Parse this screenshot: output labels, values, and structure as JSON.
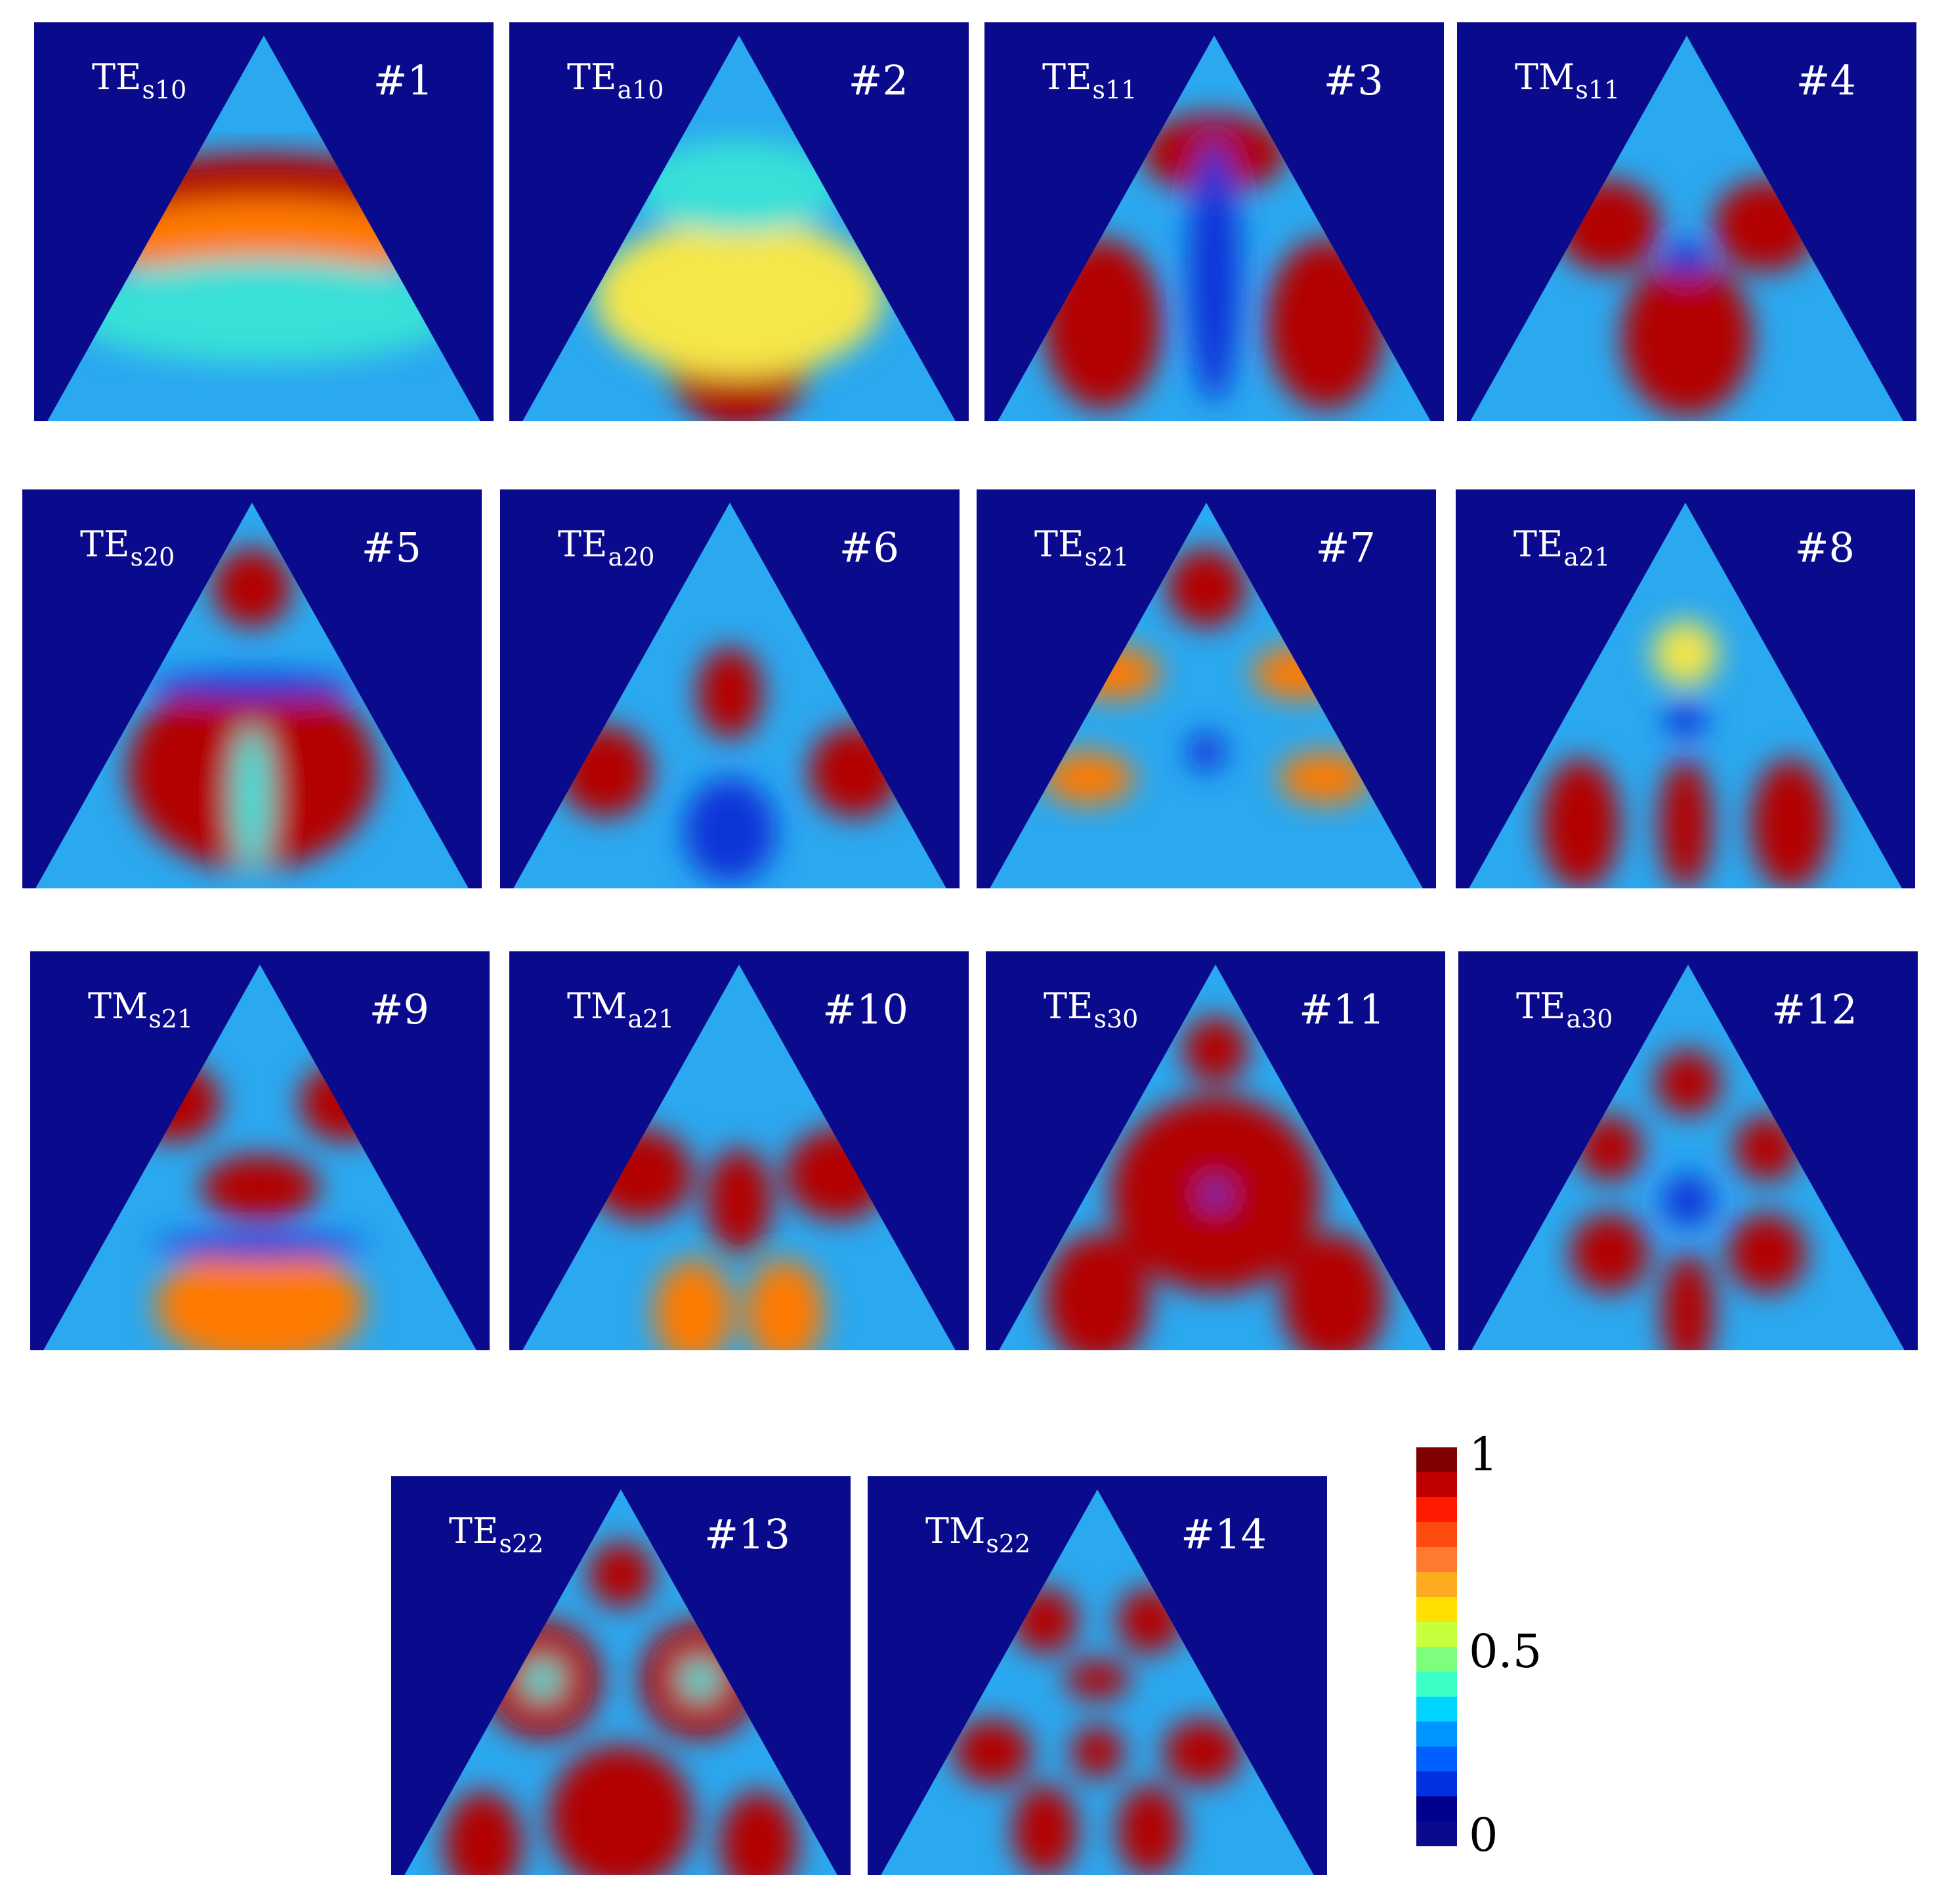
{
  "panels": [
    {
      "mode": "TE",
      "sub": "s10",
      "num": "#1"
    },
    {
      "mode": "TE",
      "sub": "a10",
      "num": "#2"
    },
    {
      "mode": "TE",
      "sub": "s11",
      "num": "#3"
    },
    {
      "mode": "TM",
      "sub": "s11",
      "num": "#4"
    },
    {
      "mode": "TE",
      "sub": "s20",
      "num": "#5"
    },
    {
      "mode": "TE",
      "sub": "a20",
      "num": "#6"
    },
    {
      "mode": "TE",
      "sub": "s21",
      "num": "#7"
    },
    {
      "mode": "TE",
      "sub": "a21",
      "num": "#8"
    },
    {
      "mode": "TM",
      "sub": "s21",
      "num": "#9"
    },
    {
      "mode": "TM",
      "sub": "a21",
      "num": "#10"
    },
    {
      "mode": "TE",
      "sub": "s30",
      "num": "#11"
    },
    {
      "mode": "TE",
      "sub": "a30",
      "num": "#12"
    },
    {
      "mode": "TE",
      "sub": "s22",
      "num": "#13"
    },
    {
      "mode": "TM",
      "sub": "s22",
      "num": "#14"
    }
  ],
  "colorbar": {
    "label_max": "1",
    "label_mid": "0.5",
    "label_min": "0",
    "colors": [
      "#7f0000",
      "#c00000",
      "#ff1a00",
      "#ff4a10",
      "#ff7a30",
      "#ffab20",
      "#ffe000",
      "#c8ff3c",
      "#7dff7d",
      "#3cffc8",
      "#00d4ff",
      "#0096ff",
      "#0060ff",
      "#0030e0",
      "#00008f",
      "#0a0a8c"
    ]
  },
  "colors": {
    "background_field": "#0a0a8c",
    "max_field": "#7f0000"
  }
}
